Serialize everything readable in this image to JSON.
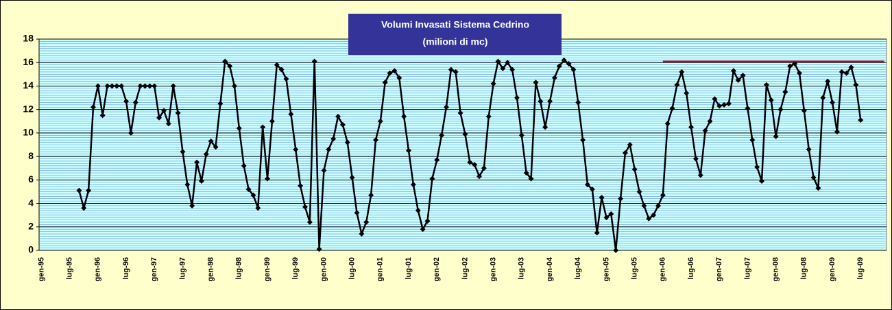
{
  "chart_data": {
    "type": "line",
    "title": "Volumi Invasati Sistema Cedrino",
    "subtitle": "(milioni di mc)",
    "categories": [
      "gen-95",
      null,
      null,
      null,
      null,
      null,
      "lug-95",
      null,
      null,
      null,
      null,
      null,
      "gen-96",
      null,
      null,
      null,
      null,
      null,
      "lug-96",
      null,
      null,
      null,
      null,
      null,
      "gen-97",
      null,
      null,
      null,
      null,
      null,
      "lug-97",
      null,
      null,
      null,
      null,
      null,
      "gen-98",
      null,
      null,
      null,
      null,
      null,
      "lug-98",
      null,
      null,
      null,
      null,
      null,
      "gen-99",
      null,
      null,
      null,
      null,
      null,
      "lug-99",
      null,
      null,
      null,
      null,
      null,
      "gen-00",
      null,
      null,
      null,
      null,
      null,
      "lug-00",
      null,
      null,
      null,
      null,
      null,
      "gen-01",
      null,
      null,
      null,
      null,
      null,
      "lug-01",
      null,
      null,
      null,
      null,
      null,
      "gen-02",
      null,
      null,
      null,
      null,
      null,
      "lug-02",
      null,
      null,
      null,
      null,
      null,
      "gen-03",
      null,
      null,
      null,
      null,
      null,
      "lug-03",
      null,
      null,
      null,
      null,
      null,
      "gen-04",
      null,
      null,
      null,
      null,
      null,
      "lug-04",
      null,
      null,
      null,
      null,
      null,
      "gen-05",
      null,
      null,
      null,
      null,
      null,
      "lug-05",
      null,
      null,
      null,
      null,
      null,
      "gen-06",
      null,
      null,
      null,
      null,
      null,
      "lug-06",
      null,
      null,
      null,
      null,
      null,
      "gen-07",
      null,
      null,
      null,
      null,
      null,
      "lug-07",
      null,
      null,
      null,
      null,
      null,
      "gen-08",
      null,
      null,
      null,
      null,
      null,
      "lug-08",
      null,
      null,
      null,
      null,
      null,
      "gen-09",
      null,
      null,
      null,
      null,
      null,
      "lug-09",
      null,
      null,
      null,
      null,
      null
    ],
    "series": [
      {
        "color": "#000000",
        "markers": true,
        "values": [
          null,
          null,
          null,
          null,
          null,
          null,
          null,
          null,
          5.1,
          3.6,
          5.1,
          12.2,
          14,
          11.5,
          14,
          14,
          14,
          14,
          12.7,
          10,
          12.6,
          14,
          14,
          14,
          14,
          11.3,
          11.9,
          10.8,
          14,
          11.7,
          8.4,
          5.6,
          3.8,
          7.5,
          5.9,
          8.2,
          9.3,
          8.8,
          12.5,
          16.1,
          15.7,
          14,
          10.4,
          7.2,
          5.2,
          4.7,
          3.6,
          10.5,
          6.1,
          11,
          15.8,
          15.4,
          14.6,
          11.6,
          8.6,
          5.5,
          3.7,
          2.4,
          16.1,
          0.1,
          6.8,
          8.6,
          9.5,
          11.4,
          10.7,
          9.2,
          6.2,
          3.2,
          1.4,
          2.4,
          4.7,
          9.4,
          11,
          14.3,
          15.1,
          15.3,
          14.7,
          11.4,
          8.5,
          5.6,
          3.4,
          1.8,
          2.5,
          6.1,
          7.7,
          9.8,
          12.2,
          15.4,
          15.2,
          11.7,
          9.9,
          7.5,
          7.3,
          6.3,
          7,
          11.4,
          14.2,
          16.1,
          15.5,
          16,
          15.4,
          13,
          9.8,
          6.6,
          6.1,
          14.3,
          12.7,
          10.5,
          12.7,
          14.7,
          15.7,
          16.2,
          15.9,
          15.4,
          12.6,
          9.4,
          5.6,
          5.2,
          1.5,
          4.5,
          2.8,
          3.1,
          0,
          4.4,
          8.3,
          9,
          6.9,
          5,
          3.8,
          2.7,
          3,
          3.8,
          4.7,
          10.8,
          12.1,
          14.1,
          15.2,
          13.4,
          10.5,
          7.8,
          6.4,
          10.2,
          11,
          12.9,
          12.3,
          12.4,
          12.5,
          15.3,
          14.5,
          14.9,
          12.1,
          9.4,
          7.1,
          5.9,
          14.1,
          12.8,
          9.7,
          12,
          13.5,
          15.7,
          15.9,
          15.1,
          11.9,
          8.6,
          6.2,
          5.3,
          13,
          14.4,
          12.6,
          10.1,
          15.2,
          15.1,
          15.6,
          14.1,
          11.1,
          null,
          null,
          null,
          null,
          null
        ]
      },
      {
        "color": "#cc0000",
        "markers": false,
        "values": [
          null,
          null,
          null,
          null,
          null,
          null,
          null,
          null,
          null,
          null,
          null,
          null,
          null,
          null,
          null,
          null,
          null,
          null,
          null,
          null,
          null,
          null,
          null,
          null,
          null,
          null,
          null,
          null,
          null,
          null,
          null,
          null,
          null,
          null,
          null,
          null,
          null,
          null,
          null,
          null,
          null,
          null,
          null,
          null,
          null,
          null,
          null,
          null,
          null,
          null,
          null,
          null,
          null,
          null,
          null,
          null,
          null,
          null,
          null,
          null,
          null,
          null,
          null,
          null,
          null,
          null,
          null,
          null,
          null,
          null,
          null,
          null,
          null,
          null,
          null,
          null,
          null,
          null,
          null,
          null,
          null,
          null,
          null,
          null,
          null,
          null,
          null,
          null,
          null,
          null,
          null,
          null,
          null,
          null,
          null,
          null,
          null,
          null,
          null,
          null,
          null,
          null,
          null,
          null,
          null,
          null,
          null,
          null,
          null,
          null,
          null,
          null,
          null,
          null,
          null,
          null,
          null,
          null,
          null,
          null,
          null,
          null,
          null,
          null,
          null,
          null,
          null,
          null,
          null,
          null,
          null,
          null,
          16.1,
          16.1,
          16.1,
          16.1,
          16.1,
          16.1,
          16.1,
          16.1,
          16.1,
          16.1,
          16.1,
          16.1,
          16.1,
          16.1,
          16.1,
          16.1,
          16.1,
          16.1,
          16.1,
          16.1,
          16.1,
          16.1,
          16.1,
          16.1,
          16.1,
          16.1,
          16.1,
          16.1,
          16.1,
          16.1,
          16.1,
          16.1,
          16.1,
          16.1,
          16.1,
          16.1,
          16.1,
          16.1,
          16.1,
          16.1,
          16.1,
          16.1,
          16.1,
          16.1,
          16.1,
          16.1,
          16.1,
          16.1
        ]
      }
    ],
    "ylim": [
      0,
      18
    ],
    "yticks": [
      0,
      2,
      4,
      6,
      8,
      10,
      12,
      14,
      16,
      18
    ],
    "grid": true,
    "grid_minor_step": 0.2
  }
}
